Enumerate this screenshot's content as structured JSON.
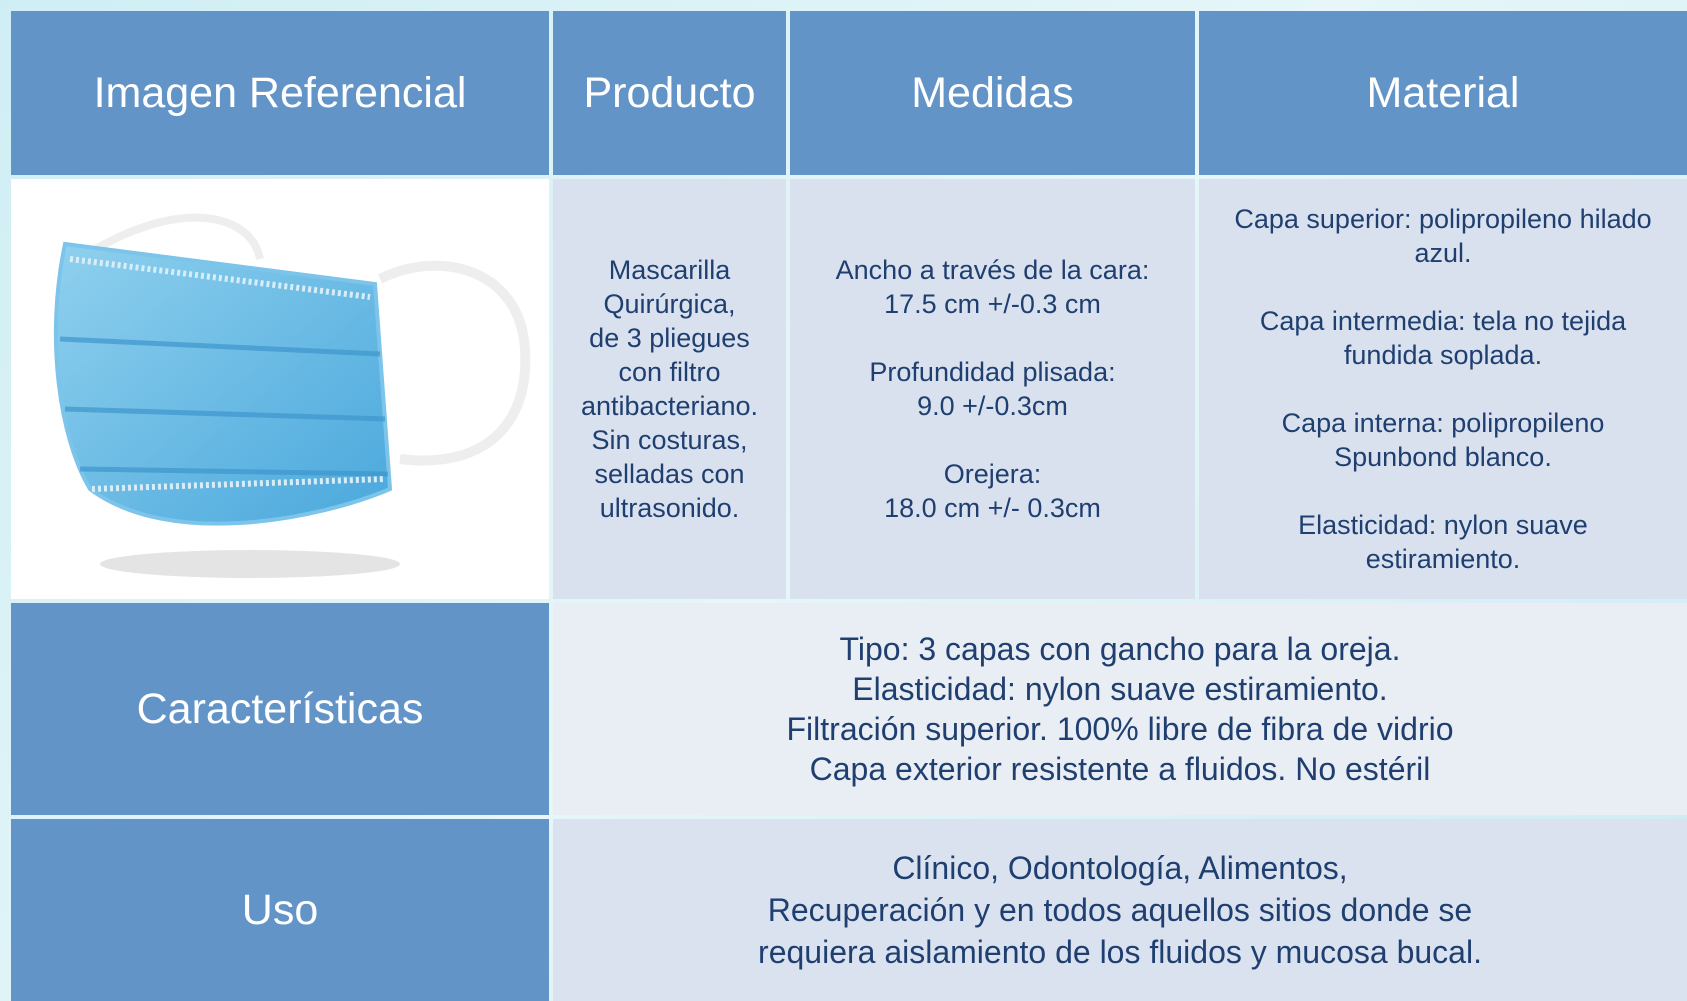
{
  "table": {
    "header": [
      "Imagen Referencial",
      "Producto",
      "Medidas",
      "Material"
    ],
    "product": [
      "Mascarilla",
      "Quirúrgica,",
      "de 3 pliegues",
      "con filtro",
      "antibacteriano.",
      "Sin costuras,",
      "selladas con",
      "ultrasonido."
    ],
    "measures": [
      [
        "Ancho a través de la cara:",
        "17.5 cm +/-0.3 cm"
      ],
      [
        "Profundidad plisada:",
        "9.0 +/-0.3cm"
      ],
      [
        "Orejera:",
        "18.0 cm +/- 0.3cm"
      ]
    ],
    "material": [
      [
        "Capa superior: polipropileno hilado",
        "azul."
      ],
      [
        "Capa intermedia: tela no tejida",
        "fundida soplada."
      ],
      [
        "Capa interna: polipropileno",
        "Spunbond blanco."
      ],
      [
        "Elasticidad: nylon suave",
        "estiramiento."
      ]
    ],
    "features": {
      "label": "Características",
      "lines": [
        "Tipo: 3 capas con gancho para la oreja.",
        "Elasticidad: nylon suave estiramiento.",
        "Filtración superior. 100% libre de fibra de vidrio",
        "Capa exterior resistente a fluidos. No estéril"
      ]
    },
    "use": {
      "label": "Uso",
      "lines": [
        "Clínico, Odontología, Alimentos,",
        "Recuperación y en todos aquellos sitios donde se",
        "requiera aislamiento de los fluidos y mucosa bucal."
      ]
    }
  }
}
